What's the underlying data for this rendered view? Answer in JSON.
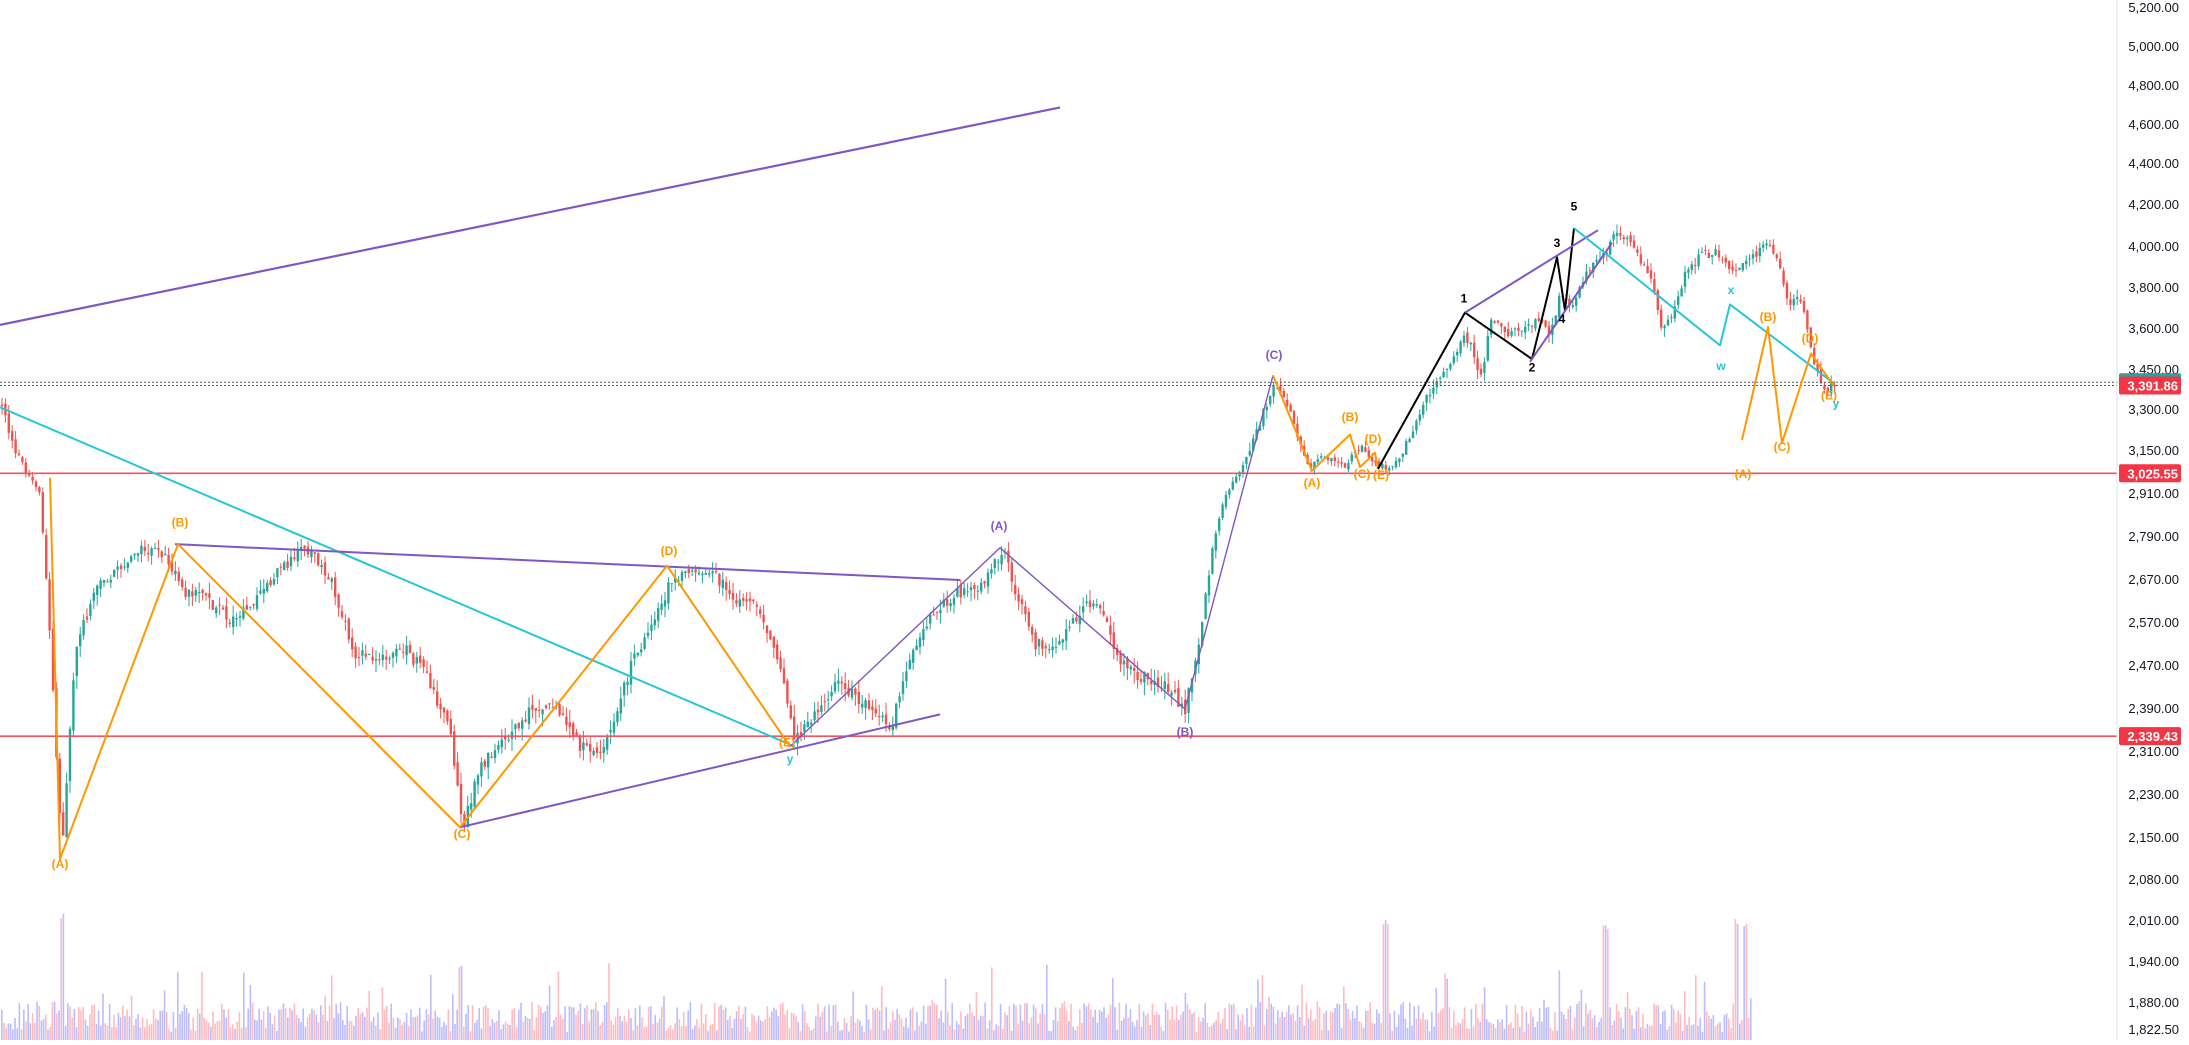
{
  "chart_data": {
    "type": "candlestick",
    "instrument": "",
    "title": "",
    "y_axis": {
      "position": "right",
      "range": [
        1800,
        5260
      ],
      "ticks": [
        "5,200.00",
        "5,000.00",
        "4,800.00",
        "4,600.00",
        "4,400.00",
        "4,200.00",
        "4,000.00",
        "3,800.00",
        "3,600.00",
        "3,450.00",
        "3,300.00",
        "3,150.00",
        "2,910.00",
        "2,790.00",
        "2,670.00",
        "2,570.00",
        "2,470.00",
        "2,390.00",
        "2,310.00",
        "2,230.00",
        "2,150.00",
        "2,080.00",
        "2,010.00",
        "1,940.00",
        "1,880.00",
        "1,822.50"
      ],
      "tick_values": [
        5200,
        5000,
        4800,
        4600,
        4400,
        4200,
        4000,
        3800,
        3600,
        3450,
        3300,
        3150,
        2910,
        2790,
        2670,
        2570,
        2470,
        2390,
        2310,
        2230,
        2150,
        2080,
        2010,
        1940,
        1880,
        1822.5
      ]
    },
    "price_badges": [
      {
        "label": "3,403.92",
        "value": 3403.92,
        "color": "#26a69a"
      },
      {
        "label": "3,391.86",
        "value": 3391.86,
        "color": "#f23645"
      },
      {
        "label": "3,025.55",
        "value": 3025.55,
        "color": "#f23645"
      },
      {
        "label": "2,339.43",
        "value": 2339.43,
        "color": "#f23645"
      }
    ],
    "horizontal_lines": [
      {
        "value": 3025.55,
        "color": "#f7525f",
        "style": "solid"
      },
      {
        "value": 2339.43,
        "color": "#f7525f",
        "style": "solid"
      },
      {
        "value": 3403.92,
        "color": "#555555",
        "style": "dotted"
      },
      {
        "value": 3391.86,
        "color": "#555555",
        "style": "dotted"
      }
    ],
    "price_path": [
      [
        0,
        3330
      ],
      [
        20,
        3100
      ],
      [
        40,
        2900
      ],
      [
        55,
        2350
      ],
      [
        62,
        2110
      ],
      [
        75,
        2500
      ],
      [
        95,
        2650
      ],
      [
        120,
        2700
      ],
      [
        140,
        2760
      ],
      [
        165,
        2740
      ],
      [
        185,
        2640
      ],
      [
        205,
        2630
      ],
      [
        230,
        2580
      ],
      [
        255,
        2620
      ],
      [
        280,
        2700
      ],
      [
        305,
        2760
      ],
      [
        330,
        2680
      ],
      [
        355,
        2500
      ],
      [
        380,
        2480
      ],
      [
        405,
        2510
      ],
      [
        430,
        2440
      ],
      [
        450,
        2350
      ],
      [
        463,
        2170
      ],
      [
        480,
        2280
      ],
      [
        505,
        2330
      ],
      [
        530,
        2390
      ],
      [
        555,
        2400
      ],
      [
        575,
        2330
      ],
      [
        600,
        2300
      ],
      [
        625,
        2440
      ],
      [
        650,
        2560
      ],
      [
        670,
        2660
      ],
      [
        690,
        2700
      ],
      [
        715,
        2680
      ],
      [
        735,
        2630
      ],
      [
        760,
        2600
      ],
      [
        780,
        2460
      ],
      [
        795,
        2330
      ],
      [
        815,
        2380
      ],
      [
        840,
        2440
      ],
      [
        865,
        2400
      ],
      [
        890,
        2350
      ],
      [
        905,
        2450
      ],
      [
        925,
        2570
      ],
      [
        945,
        2620
      ],
      [
        965,
        2650
      ],
      [
        985,
        2660
      ],
      [
        1003,
        2760
      ],
      [
        1015,
        2650
      ],
      [
        1035,
        2520
      ],
      [
        1060,
        2520
      ],
      [
        1080,
        2600
      ],
      [
        1100,
        2620
      ],
      [
        1115,
        2500
      ],
      [
        1135,
        2450
      ],
      [
        1160,
        2440
      ],
      [
        1185,
        2390
      ],
      [
        1200,
        2520
      ],
      [
        1215,
        2800
      ],
      [
        1235,
        3000
      ],
      [
        1255,
        3200
      ],
      [
        1275,
        3420
      ],
      [
        1292,
        3280
      ],
      [
        1310,
        3060
      ],
      [
        1325,
        3120
      ],
      [
        1345,
        3070
      ],
      [
        1360,
        3170
      ],
      [
        1375,
        3080
      ],
      [
        1390,
        3050
      ],
      [
        1402,
        3130
      ],
      [
        1420,
        3300
      ],
      [
        1440,
        3420
      ],
      [
        1462,
        3560
      ],
      [
        1470,
        3560
      ],
      [
        1480,
        3400
      ],
      [
        1492,
        3660
      ],
      [
        1505,
        3580
      ],
      [
        1520,
        3610
      ],
      [
        1538,
        3640
      ],
      [
        1550,
        3570
      ],
      [
        1560,
        3760
      ],
      [
        1575,
        3720
      ],
      [
        1585,
        3860
      ],
      [
        1595,
        3930
      ],
      [
        1605,
        3960
      ],
      [
        1615,
        4060
      ],
      [
        1628,
        4030
      ],
      [
        1640,
        3930
      ],
      [
        1652,
        3860
      ],
      [
        1662,
        3600
      ],
      [
        1672,
        3680
      ],
      [
        1685,
        3860
      ],
      [
        1700,
        3960
      ],
      [
        1718,
        3970
      ],
      [
        1734,
        3880
      ],
      [
        1748,
        3950
      ],
      [
        1758,
        3960
      ],
      [
        1768,
        4050
      ],
      [
        1780,
        3880
      ],
      [
        1790,
        3720
      ],
      [
        1800,
        3760
      ],
      [
        1812,
        3520
      ],
      [
        1822,
        3380
      ],
      [
        1830,
        3390
      ],
      [
        1838,
        3391.86
      ]
    ],
    "volume": {
      "x_start": 0,
      "x_end": 1752,
      "spikes": [
        [
          62,
          1
        ],
        [
          460,
          0.55
        ],
        [
          1385,
          0.95
        ],
        [
          1605,
          0.92
        ],
        [
          1735,
          0.95
        ],
        [
          1745,
          0.92
        ]
      ]
    },
    "drawings": [
      {
        "name": "purple-channel-upper-line",
        "color": "#7e57c2",
        "points": [
          [
            0,
            3620
          ],
          [
            1060,
            4690
          ]
        ],
        "width": 2.2
      },
      {
        "name": "cyan-descending-trendline",
        "color": "#26c6da",
        "points": [
          [
            0,
            3310
          ],
          [
            795,
            2320
          ]
        ],
        "width": 2
      },
      {
        "name": "purple-triangle-upper",
        "color": "#7e57c2",
        "points": [
          [
            175,
            2770
          ],
          [
            960,
            2670
          ]
        ],
        "width": 2
      },
      {
        "name": "purple-triangle-lower",
        "color": "#7e57c2",
        "points": [
          [
            460,
            2170
          ],
          [
            940,
            2380
          ]
        ],
        "width": 2
      },
      {
        "name": "orange-wave-left",
        "color": "#ff9800",
        "points": [
          [
            50,
            3000
          ],
          [
            60,
            2115
          ],
          [
            178,
            2770
          ],
          [
            460,
            2170
          ],
          [
            667,
            2710
          ],
          [
            790,
            2320
          ]
        ],
        "width": 2
      },
      {
        "name": "purple-wave-abc",
        "color": "#7e57c2",
        "points": [
          [
            790,
            2320
          ],
          [
            1000,
            2760
          ],
          [
            1185,
            2390
          ],
          [
            1273,
            3430
          ]
        ],
        "width": 1.4
      },
      {
        "name": "orange-triangle-right",
        "color": "#ff9800",
        "points": [
          [
            1273,
            3430
          ],
          [
            1312,
            3040
          ],
          [
            1350,
            3210
          ],
          [
            1360,
            3060
          ],
          [
            1375,
            3140
          ],
          [
            1378,
            3050
          ]
        ],
        "width": 2
      },
      {
        "name": "black-impulse",
        "color": "#000000",
        "points": [
          [
            1378,
            3050
          ],
          [
            1465,
            3680
          ],
          [
            1532,
            3490
          ],
          [
            1557,
            3950
          ],
          [
            1565,
            3690
          ],
          [
            1574,
            4090
          ]
        ],
        "width": 2
      },
      {
        "name": "purple-wedge-upper",
        "color": "#7e57c2",
        "points": [
          [
            1465,
            3680
          ],
          [
            1598,
            4080
          ]
        ],
        "width": 2
      },
      {
        "name": "purple-wedge-lower",
        "color": "#7e57c2",
        "points": [
          [
            1530,
            3480
          ],
          [
            1612,
            4020
          ]
        ],
        "width": 2
      },
      {
        "name": "cyan-wxy-correction",
        "color": "#26c6da",
        "points": [
          [
            1574,
            4090
          ],
          [
            1720,
            3540
          ],
          [
            1730,
            3720
          ],
          [
            1834,
            3400
          ]
        ],
        "width": 2
      },
      {
        "name": "orange-abcde-projection",
        "color": "#ff9800",
        "points": [
          [
            1742,
            3190
          ],
          [
            1768,
            3610
          ],
          [
            1782,
            3180
          ],
          [
            1811,
            3510
          ],
          [
            1834,
            3390
          ]
        ],
        "width": 2
      }
    ],
    "wave_labels": [
      {
        "text": "(A)",
        "x": 60,
        "y": 2100,
        "color": "#ff9800"
      },
      {
        "text": "(B)",
        "x": 180,
        "y": 2820,
        "color": "#ff9800"
      },
      {
        "text": "(C)",
        "x": 462,
        "y": 2150,
        "color": "#ff9800"
      },
      {
        "text": "(D)",
        "x": 669,
        "y": 2740,
        "color": "#ff9800"
      },
      {
        "text": "(E)",
        "x": 787,
        "y": 2320,
        "color": "#ff9800"
      },
      {
        "text": "y",
        "x": 790,
        "y": 2290,
        "color": "#26c6da"
      },
      {
        "text": "(A)",
        "x": 999,
        "y": 2810,
        "color": "#7e57c2"
      },
      {
        "text": "(B)",
        "x": 1185,
        "y": 2340,
        "color": "#7e57c2"
      },
      {
        "text": "(C)",
        "x": 1274,
        "y": 3490,
        "color": "#7e57c2"
      },
      {
        "text": "(A)",
        "x": 1312,
        "y": 2950,
        "color": "#ff9800"
      },
      {
        "text": "(B)",
        "x": 1350,
        "y": 3260,
        "color": "#ff9800"
      },
      {
        "text": "(C)",
        "x": 1362,
        "y": 3000,
        "color": "#ff9800"
      },
      {
        "text": "(D)",
        "x": 1373,
        "y": 3180,
        "color": "#ff9800"
      },
      {
        "text": "(E)",
        "x": 1381,
        "y": 2995,
        "color": "#ff9800"
      },
      {
        "text": "1",
        "x": 1464,
        "y": 3730,
        "color": "#000000"
      },
      {
        "text": "2",
        "x": 1532,
        "y": 3445,
        "color": "#000000"
      },
      {
        "text": "3",
        "x": 1557,
        "y": 4000,
        "color": "#000000"
      },
      {
        "text": "4",
        "x": 1562,
        "y": 3630,
        "color": "#000000"
      },
      {
        "text": "5",
        "x": 1574,
        "y": 4175,
        "color": "#000000"
      },
      {
        "text": "x",
        "x": 1731,
        "y": 3770,
        "color": "#26c6da"
      },
      {
        "text": "w",
        "x": 1721,
        "y": 3450,
        "color": "#26c6da"
      },
      {
        "text": "(A)",
        "x": 1743,
        "y": 3000,
        "color": "#ff9800"
      },
      {
        "text": "(B)",
        "x": 1768,
        "y": 3640,
        "color": "#ff9800"
      },
      {
        "text": "(C)",
        "x": 1782,
        "y": 3150,
        "color": "#ff9800"
      },
      {
        "text": "(D)",
        "x": 1810,
        "y": 3550,
        "color": "#ff9800"
      },
      {
        "text": "(E)",
        "x": 1829,
        "y": 3340,
        "color": "#ff9800"
      },
      {
        "text": "y",
        "x": 1836,
        "y": 3310,
        "color": "#26c6da"
      }
    ],
    "grid": false,
    "legend": "none"
  }
}
